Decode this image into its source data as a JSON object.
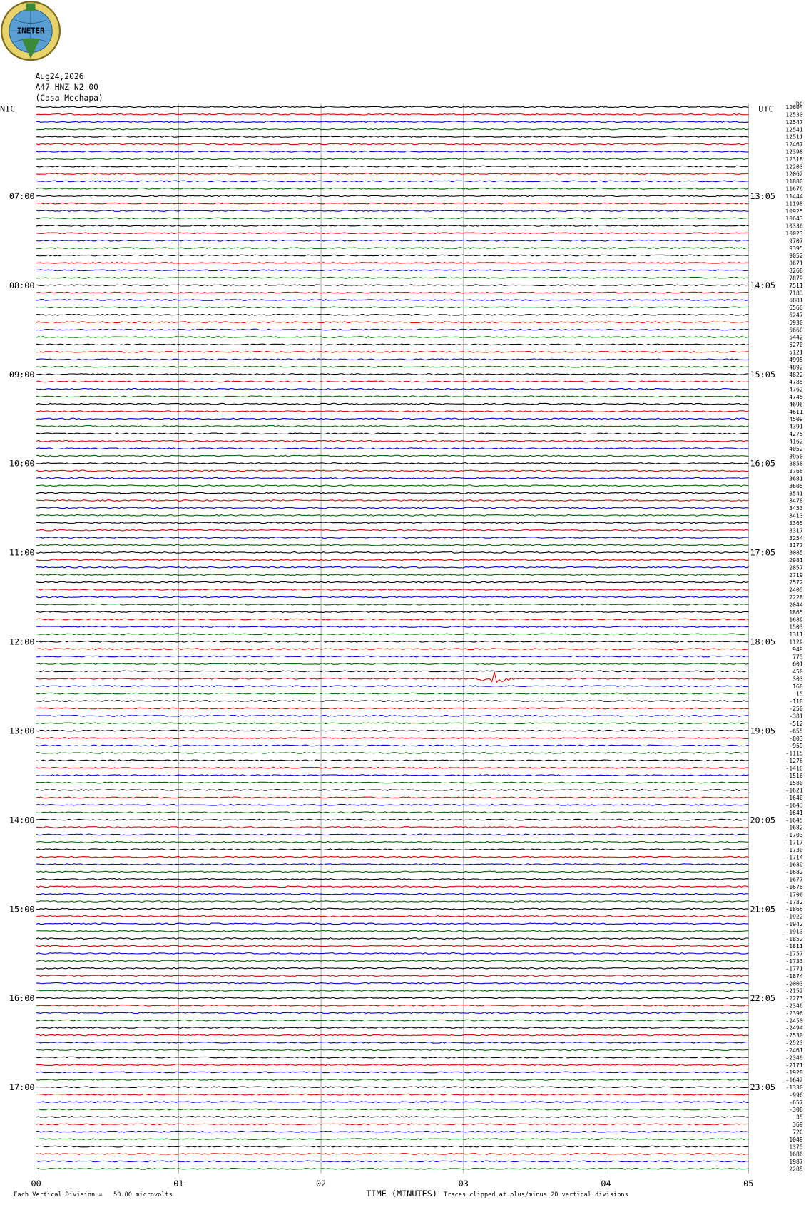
{
  "header": {
    "logo": "INETER",
    "date": "Aug24,2026",
    "station": "A47 HNZ N2 00",
    "location": "(Casa Mechapa)"
  },
  "left_label": "NIC",
  "right_label": "UTC",
  "dc_label": "DC",
  "local_times": [
    "07:00",
    "08:00",
    "09:00",
    "10:00",
    "11:00",
    "12:00",
    "13:00",
    "14:00",
    "15:00",
    "16:00",
    "17:00"
  ],
  "utc_times": [
    "13:05",
    "14:05",
    "15:05",
    "16:05",
    "17:05",
    "18:05",
    "19:05",
    "20:05",
    "21:05",
    "22:05",
    "23:05"
  ],
  "trace_offsets": [
    12604,
    12530,
    12547,
    12541,
    12511,
    12467,
    12398,
    12318,
    12203,
    12062,
    11880,
    11676,
    11444,
    11198,
    10925,
    10643,
    10336,
    10023,
    9707,
    9395,
    9052,
    8671,
    8268,
    7879,
    7511,
    7183,
    6881,
    6566,
    6247,
    5930,
    5660,
    5442,
    5270,
    5121,
    4995,
    4892,
    4822,
    4785,
    4762,
    4745,
    4696,
    4611,
    4509,
    4391,
    4275,
    4162,
    4052,
    3950,
    3858,
    3766,
    3681,
    3605,
    3541,
    3478,
    3453,
    3413,
    3365,
    3317,
    3254,
    3177,
    3085,
    2981,
    2857,
    2719,
    2572,
    2405,
    2228,
    2044,
    1865,
    1689,
    1503,
    1311,
    1129,
    949,
    775,
    601,
    450,
    303,
    160,
    15,
    -118,
    -250,
    -381,
    -512,
    -655,
    -803,
    -959,
    -1115,
    -1276,
    -1410,
    -1516,
    -1580,
    -1621,
    -1640,
    -1643,
    -1641,
    -1645,
    -1682,
    -1703,
    -1717,
    -1730,
    -1714,
    -1689,
    -1682,
    -1677,
    -1676,
    -1706,
    -1782,
    -1866,
    -1922,
    -1942,
    -1913,
    -1852,
    -1811,
    -1757,
    -1733,
    -1771,
    -1874,
    -2003,
    -2152,
    -2273,
    -2346,
    -2396,
    -2450,
    -2494,
    -2530,
    -2523,
    -2461,
    -2346,
    -2171,
    -1928,
    -1642,
    -1330,
    -996,
    -657,
    -308,
    35,
    369,
    720,
    1049,
    1375,
    1686,
    1987,
    2285
  ],
  "trace_colors": [
    "#000000",
    "#e00000",
    "#0000dd",
    "#006600"
  ],
  "x_axis": {
    "ticks": [
      "00",
      "01",
      "02",
      "03",
      "04",
      "05"
    ],
    "title": "TIME (MINUTES)"
  },
  "footer": {
    "scale": "Each Vertical Division =   50.00 microvolts",
    "clip": "Traces clipped at plus/minus 20 vertical divisions"
  }
}
